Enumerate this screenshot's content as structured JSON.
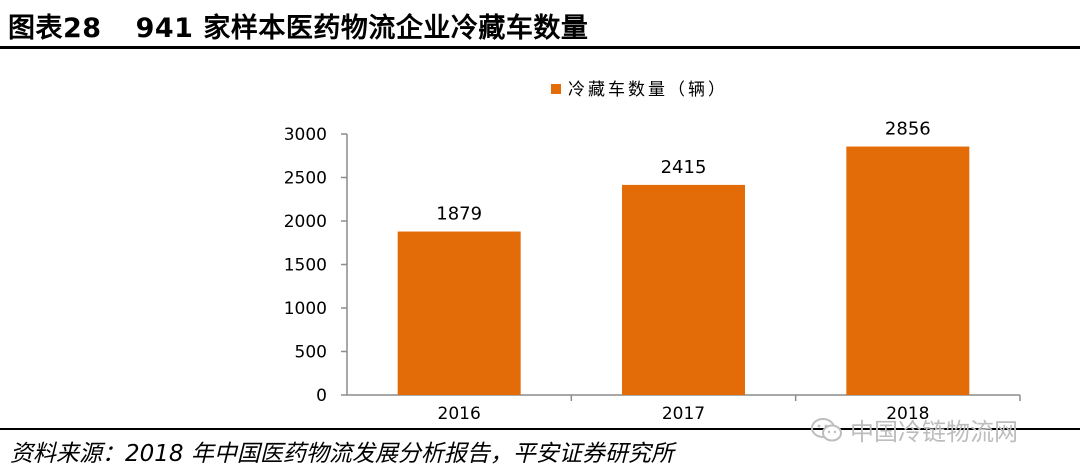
{
  "header": {
    "figure_label": "图表28",
    "title": "941 家样本医药物流企业冷藏车数量"
  },
  "chart_data": {
    "type": "bar",
    "categories": [
      "2016",
      "2017",
      "2018"
    ],
    "series": [
      {
        "name": "冷藏车数量（辆）",
        "values": [
          1879,
          2415,
          2856
        ]
      }
    ],
    "data_labels": [
      "1879",
      "2415",
      "2856"
    ],
    "y_ticks": [
      "0",
      "500",
      "1000",
      "1500",
      "2000",
      "2500",
      "3000"
    ],
    "ylim": [
      0,
      3000
    ],
    "grid": false,
    "legend_position": "top-center",
    "bar_color": "#e36c09"
  },
  "footer": {
    "source": "资料来源：2018 年中国医药物流发展分析报告，平安证券研究所",
    "watermark": "中国冷链物流网",
    "watermark_icon": "wechat-icon"
  }
}
